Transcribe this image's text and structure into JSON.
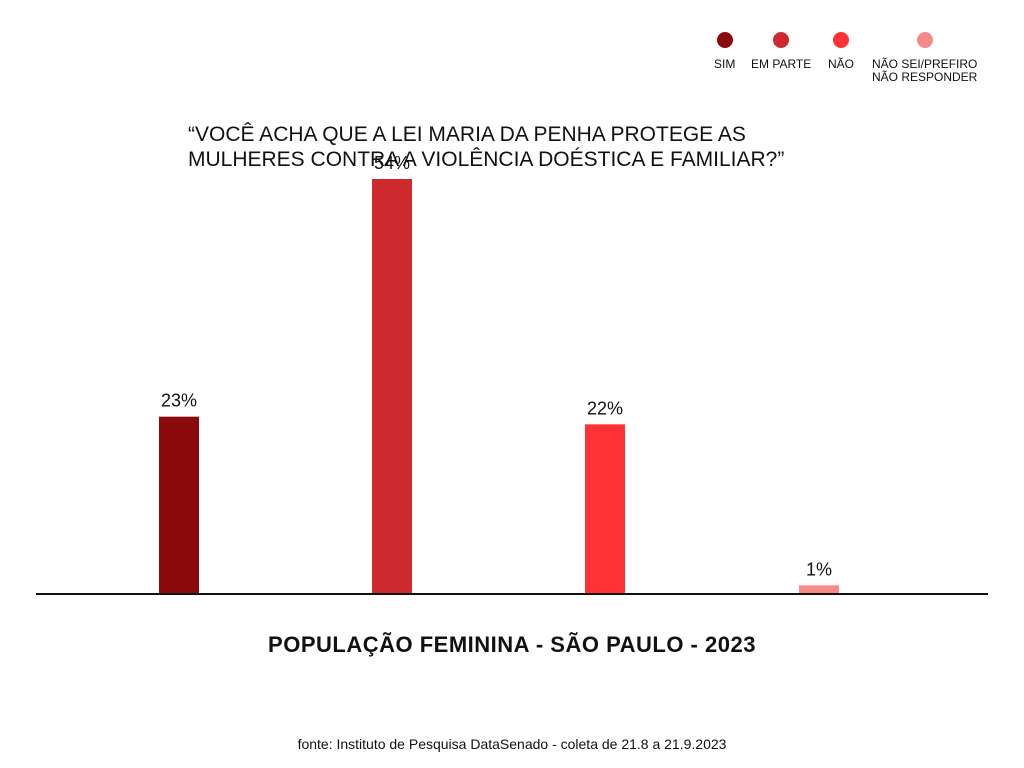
{
  "legend": {
    "items": [
      {
        "label": "SIM",
        "color": "#8b0a0c"
      },
      {
        "label": "EM PARTE",
        "color": "#cc2a2f"
      },
      {
        "label": "NÃO",
        "color": "#fe3235"
      },
      {
        "label": "NÃO SEI/PREFIRO\nNÃO RESPONDER",
        "color": "#f58a89"
      }
    ]
  },
  "question": "“VOCÊ ACHA QUE A LEI MARIA DA PENHA PROTEGE AS\nMULHERES CONTRA A VIOLÊNCIA DOÉSTICA E FAMILIAR?”",
  "subtitle": "POPULAÇÃO FEMININA - SÃO PAULO - 2023",
  "source": "fonte: Instituto de Pesquisa DataSenado -  coleta de 21.8 a 21.9.2023",
  "chart_data": {
    "type": "bar",
    "title": "“VOCÊ ACHA QUE A LEI MARIA DA PENHA PROTEGE AS MULHERES CONTRA A VIOLÊNCIA DOÉSTICA E FAMILIAR?”",
    "categories": [
      "SIM",
      "EM PARTE",
      "NÃO",
      "NÃO SEI/PREFIRO NÃO RESPONDER"
    ],
    "values": [
      23,
      54,
      22,
      1
    ],
    "value_labels": [
      "23%",
      "54%",
      "22%",
      "1%"
    ],
    "colors": [
      "#8b0a0c",
      "#cc2a2f",
      "#fe3235",
      "#f58a89"
    ],
    "unit": "%",
    "ylim": [
      0,
      60
    ],
    "grid": false,
    "legend_position": "top-right",
    "xlabel": "",
    "ylabel": ""
  }
}
